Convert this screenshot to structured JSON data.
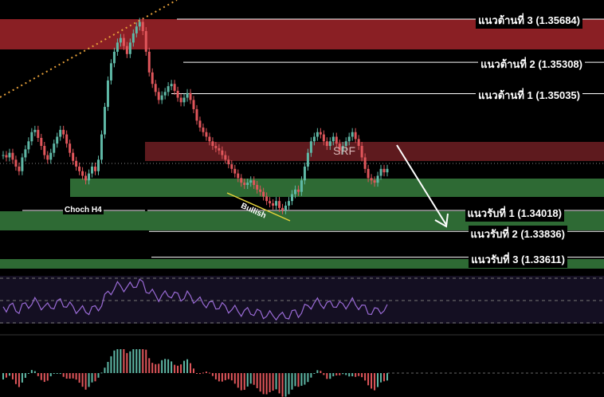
{
  "levels": {
    "resistance_3": "แนวต้านที่ 3 (1.35684)",
    "resistance_2": "แนวต้านที่ 2 (1.35308)",
    "resistance_1": "แนวต้านที่ 1 (1.35035)",
    "support_1": "แนวรับที่ 1 (1.34018)",
    "support_2": "แนวรับที่ 2 (1.33836)",
    "support_3": "แนวรับที่ 3 (1.33611)"
  },
  "annotations": {
    "zone_label": "SRF",
    "choch": "Choch H4",
    "bullish": "Bullish"
  },
  "colors": {
    "background": "#000000",
    "resistance_zone": "#8a1f24",
    "srf_zone": "#5e1a1e",
    "support_zone": "#2e6a34",
    "bull_candle": "#5fb8a6",
    "bear_candle": "#e0565b",
    "rsi_line": "#9a6bd6",
    "trendline": "#e6a03a",
    "arrow": "#ffffff"
  },
  "chart_data": {
    "type": "candlestick",
    "price_levels": [
      {
        "name": "แนวต้านที่ 3",
        "value": 1.35684
      },
      {
        "name": "แนวต้านที่ 2",
        "value": 1.35308
      },
      {
        "name": "แนวต้านที่ 1",
        "value": 1.35035
      },
      {
        "name": "แนวรับที่ 1",
        "value": 1.34018
      },
      {
        "name": "แนวรับที่ 2",
        "value": 1.33836
      },
      {
        "name": "แนวรับที่ 3",
        "value": 1.33611
      }
    ],
    "closes": [
      1.345,
      1.3448,
      1.3452,
      1.3446,
      1.344,
      1.3436,
      1.3448,
      1.3455,
      1.3462,
      1.347,
      1.3472,
      1.3465,
      1.3458,
      1.345,
      1.3446,
      1.3452,
      1.346,
      1.3466,
      1.3472,
      1.3468,
      1.346,
      1.3452,
      1.3445,
      1.344,
      1.3436,
      1.3432,
      1.3428,
      1.3434,
      1.344,
      1.3436,
      1.3446,
      1.3468,
      1.3492,
      1.3515,
      1.353,
      1.354,
      1.3548,
      1.3552,
      1.3545,
      1.3538,
      1.3548,
      1.3556,
      1.3562,
      1.3566,
      1.3558,
      1.354,
      1.3522,
      1.3512,
      1.3505,
      1.3498,
      1.3502,
      1.3505,
      1.351,
      1.3512,
      1.3506,
      1.35,
      1.3496,
      1.35,
      1.3504,
      1.3498,
      1.349,
      1.348,
      1.3474,
      1.347,
      1.3466,
      1.3462,
      1.3458,
      1.3456,
      1.3454,
      1.345,
      1.3446,
      1.3442,
      1.3438,
      1.3434,
      1.343,
      1.3426,
      1.3424,
      1.3426,
      1.3428,
      1.3424,
      1.342,
      1.3418,
      1.3414,
      1.341,
      1.3408,
      1.3406,
      1.341,
      1.3404,
      1.3402,
      1.3406,
      1.341,
      1.3416,
      1.342,
      1.3418,
      1.3428,
      1.344,
      1.3452,
      1.3462,
      1.3466,
      1.347,
      1.3468,
      1.3462,
      1.3458,
      1.3462,
      1.3466,
      1.346,
      1.3454,
      1.3458,
      1.3462,
      1.3466,
      1.347,
      1.3464,
      1.3458,
      1.3448,
      1.3438,
      1.343,
      1.3428,
      1.3426,
      1.3432,
      1.3438,
      1.3435,
      1.3438
    ]
  }
}
